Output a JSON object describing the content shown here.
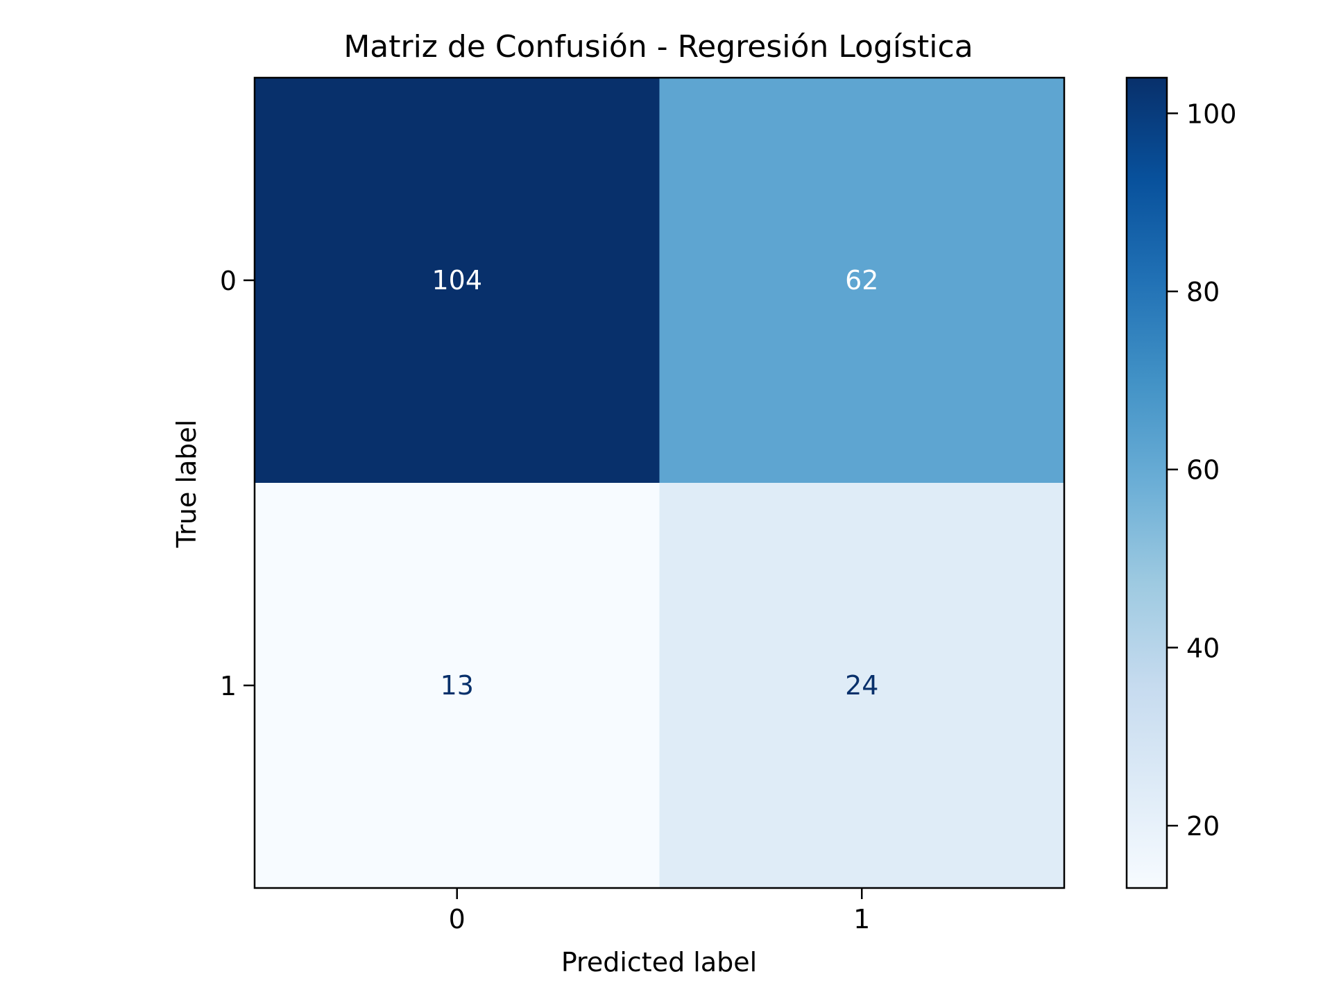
{
  "chart_data": {
    "type": "heatmap",
    "title": "Matriz de Confusión - Regresión Logística",
    "xlabel": "Predicted label",
    "ylabel": "True label",
    "x_categories": [
      "0",
      "1"
    ],
    "y_categories": [
      "0",
      "1"
    ],
    "matrix": [
      [
        104,
        62
      ],
      [
        13,
        24
      ]
    ],
    "colormap": "Blues",
    "colorbar": {
      "min": 13,
      "max": 104,
      "ticks": [
        20,
        40,
        60,
        80,
        100
      ],
      "tick_labels": [
        "20",
        "40",
        "60",
        "80",
        "100"
      ]
    },
    "text_colors": {
      "light": "#ffffff",
      "dark": "#08306b"
    }
  }
}
